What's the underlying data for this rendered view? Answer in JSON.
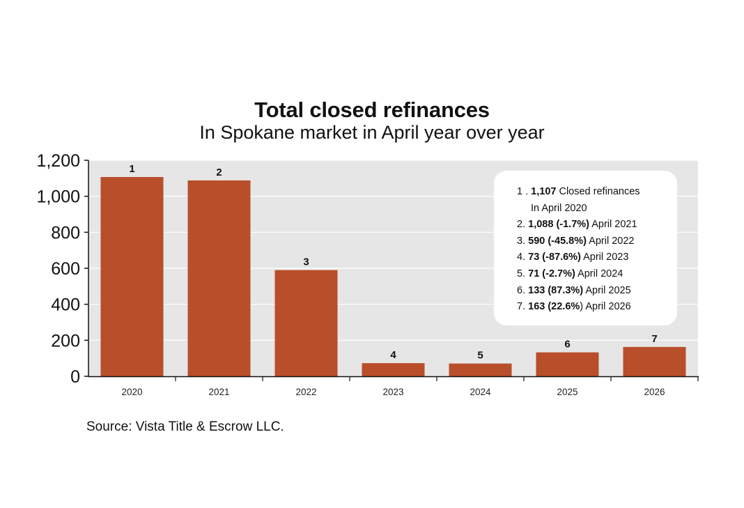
{
  "chart_data": {
    "type": "bar",
    "title": "Total closed refinances",
    "subtitle": "In Spokane market in April year over year",
    "categories": [
      "2020",
      "2021",
      "2022",
      "2023",
      "2024",
      "2025",
      "2026"
    ],
    "values": [
      1107,
      1088,
      590,
      73,
      71,
      133,
      163
    ],
    "bar_labels": [
      "1",
      "2",
      "3",
      "4",
      "5",
      "6",
      "7"
    ],
    "xlabel": "",
    "ylabel": "",
    "ylim": [
      0,
      1200
    ],
    "yticks": [
      0,
      200,
      400,
      600,
      800,
      1000,
      1200
    ],
    "ytick_labels": [
      "0",
      "200",
      "400",
      "600",
      "800",
      "1,000",
      "1,200"
    ],
    "grid": true,
    "legend_placement": "top-right",
    "colors": {
      "bar": "#b84e2a",
      "plot_background": "#e6e6e7",
      "grid": "#ffffff",
      "axis": "#111111"
    },
    "annotation_box": {
      "items": [
        {
          "prefix": "1 . ",
          "bold": "1,107",
          "rest": " Closed refinances",
          "continuation": "In April 2020"
        },
        {
          "prefix": "2. ",
          "bold": "1,088 (-1.7%)",
          "rest": " April 2021"
        },
        {
          "prefix": "3. ",
          "bold": "590 (-45.8%)",
          "rest": " April 2022"
        },
        {
          "prefix": "4. ",
          "bold": "73 (-87.6%)",
          "rest": " April 2023"
        },
        {
          "prefix": "5. ",
          "bold": "71 (-2.7%)",
          "rest": " April 2024"
        },
        {
          "prefix": "6. ",
          "bold": "133 (87.3%)",
          "rest": " April 2025"
        },
        {
          "prefix": "7. ",
          "bold": "163 (22.6%",
          "rest": ") April 2026"
        }
      ]
    }
  },
  "source": "Source: Vista Title & Escrow LLC."
}
